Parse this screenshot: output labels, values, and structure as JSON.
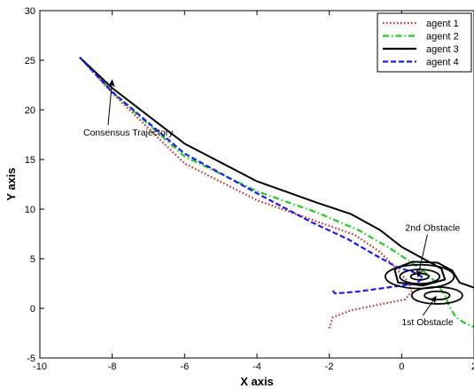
{
  "chart_data": {
    "type": "line",
    "title": "",
    "xlabel": "X axis",
    "ylabel": "Y axis",
    "xlim": [
      -10,
      2
    ],
    "ylim": [
      -5,
      30
    ],
    "xticks": [
      -10,
      -8,
      -6,
      -4,
      -2,
      0,
      2
    ],
    "yticks": [
      -5,
      0,
      5,
      10,
      15,
      20,
      25,
      30
    ],
    "xtick_labels": [
      "-10",
      "-8",
      "-6",
      "-4",
      "-2",
      "0",
      "2"
    ],
    "ytick_labels": [
      "-5",
      "0",
      "5",
      "10",
      "15",
      "20",
      "25",
      "30"
    ],
    "grid": false,
    "legend_position": "top-right",
    "series": [
      {
        "name": "agent 1",
        "color": "#cc2222",
        "style": "dotted",
        "points": [
          [
            -2.0,
            -2.0
          ],
          [
            -1.9,
            -0.9
          ],
          [
            -1.4,
            -0.2
          ],
          [
            -0.6,
            0.4
          ],
          [
            0.1,
            0.9
          ],
          [
            0.3,
            1.8
          ],
          [
            0.15,
            2.8
          ],
          [
            -0.2,
            4.2
          ],
          [
            -0.6,
            5.7
          ],
          [
            -1.3,
            7.4
          ],
          [
            -2.3,
            8.7
          ],
          [
            -4.0,
            10.9
          ],
          [
            -6.0,
            14.6
          ],
          [
            -8.0,
            21.7
          ],
          [
            -8.9,
            25.3
          ]
        ]
      },
      {
        "name": "agent 2",
        "color": "#22cc22",
        "style": "dashdot",
        "points": [
          [
            2.1,
            -2.0
          ],
          [
            1.8,
            -1.6
          ],
          [
            1.5,
            -0.9
          ],
          [
            1.3,
            0.3
          ],
          [
            1.2,
            1.3
          ],
          [
            1.0,
            2.3
          ],
          [
            0.8,
            3.2
          ],
          [
            0.4,
            4.3
          ],
          [
            -0.3,
            6.0
          ],
          [
            -1.2,
            7.9
          ],
          [
            -2.3,
            9.6
          ],
          [
            -4.0,
            11.8
          ],
          [
            -6.0,
            15.3
          ],
          [
            -8.0,
            21.8
          ],
          [
            -8.9,
            25.3
          ]
        ]
      },
      {
        "name": "agent 3",
        "color": "#000000",
        "style": "solid",
        "points": [
          [
            2.0,
            2.1
          ],
          [
            1.6,
            2.6
          ],
          [
            1.4,
            3.8
          ],
          [
            1.0,
            4.6
          ],
          [
            0.3,
            4.7
          ],
          [
            -0.2,
            4.0
          ],
          [
            -0.1,
            2.6
          ],
          [
            0.6,
            2.3
          ],
          [
            1.2,
            2.9
          ],
          [
            1.1,
            4.0
          ],
          [
            0.6,
            5.0
          ],
          [
            0.0,
            6.2
          ],
          [
            -0.6,
            7.9
          ],
          [
            -1.4,
            9.5
          ],
          [
            -2.3,
            10.6
          ],
          [
            -4.0,
            12.8
          ],
          [
            -6.0,
            16.6
          ],
          [
            -8.0,
            22.2
          ],
          [
            -8.9,
            25.3
          ]
        ]
      },
      {
        "name": "agent 4",
        "color": "#1a1aff",
        "style": "dashed",
        "points": [
          [
            -1.9,
            1.8
          ],
          [
            -1.85,
            1.5
          ],
          [
            -1.2,
            1.7
          ],
          [
            -0.4,
            2.1
          ],
          [
            0.4,
            2.5
          ],
          [
            0.6,
            3.1
          ],
          [
            0.3,
            3.7
          ],
          [
            -0.1,
            4.1
          ],
          [
            -0.7,
            5.3
          ],
          [
            -1.5,
            7.0
          ],
          [
            -2.5,
            8.7
          ],
          [
            -4.0,
            11.6
          ],
          [
            -6.0,
            15.6
          ],
          [
            -8.0,
            21.8
          ],
          [
            -8.9,
            25.3
          ]
        ]
      }
    ],
    "obstacles": [
      {
        "label": "1st Obstacle",
        "center": [
          0.98,
          1.3
        ],
        "rings": [
          [
            0.35,
            0.42
          ],
          [
            0.7,
            0.85
          ]
        ]
      },
      {
        "label": "2nd Obstacle",
        "center": [
          0.5,
          3.2
        ],
        "rings": [
          [
            0.25,
            0.32
          ],
          [
            0.55,
            0.72
          ],
          [
            0.95,
            1.2
          ]
        ]
      }
    ],
    "annotations": [
      {
        "text": "Consensus Trajectory",
        "text_at": [
          -8.8,
          17.4
        ],
        "arrow_to": [
          -8.0,
          23.0
        ]
      },
      {
        "text": "2nd Obstacle",
        "text_at": [
          0.1,
          7.8
        ],
        "arrow_to": [
          0.45,
          3.2
        ]
      },
      {
        "text": "1st Obstacle",
        "text_at": [
          0.0,
          -1.7
        ],
        "arrow_to": [
          0.95,
          1.2
        ]
      }
    ]
  }
}
